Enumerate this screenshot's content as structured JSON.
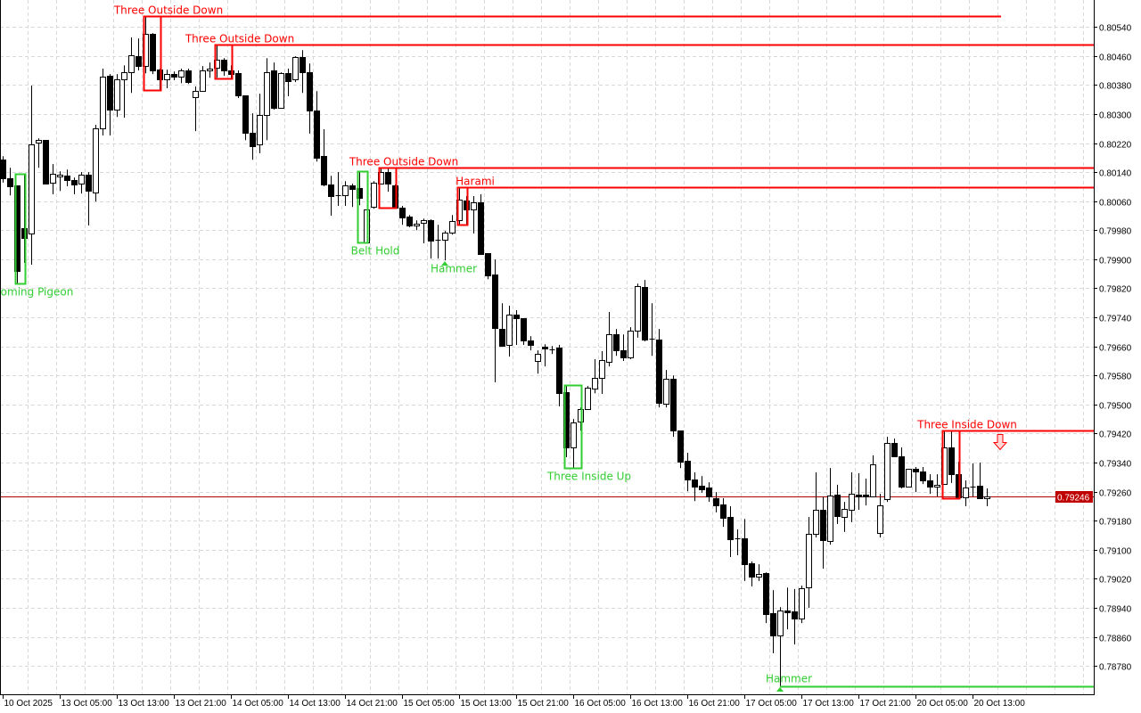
{
  "chart_data": {
    "type": "candlestick",
    "title": "",
    "ylim": [
      0.78702,
      0.80614
    ],
    "grid": true,
    "y_ticks": [
      "0.80540",
      "0.80460",
      "0.80380",
      "0.80300",
      "0.80220",
      "0.80140",
      "0.80060",
      "0.79980",
      "0.79900",
      "0.79820",
      "0.79740",
      "0.79660",
      "0.79580",
      "0.79500",
      "0.79420",
      "0.79340",
      "0.79260",
      "0.79180",
      "0.79100",
      "0.79020",
      "0.78940",
      "0.78860",
      "0.78780"
    ],
    "x_ticks": [
      {
        "bar": 0,
        "label": "10 Oct 2025"
      },
      {
        "bar": 8,
        "label": "13 Oct 05:00"
      },
      {
        "bar": 16,
        "label": "13 Oct 13:00"
      },
      {
        "bar": 24,
        "label": "13 Oct 21:00"
      },
      {
        "bar": 32,
        "label": "14 Oct 05:00"
      },
      {
        "bar": 40,
        "label": "14 Oct 13:00"
      },
      {
        "bar": 48,
        "label": "14 Oct 21:00"
      },
      {
        "bar": 56,
        "label": "15 Oct 05:00"
      },
      {
        "bar": 64,
        "label": "15 Oct 13:00"
      },
      {
        "bar": 72,
        "label": "15 Oct 21:00"
      },
      {
        "bar": 80,
        "label": "16 Oct 05:00"
      },
      {
        "bar": 88,
        "label": "16 Oct 13:00"
      },
      {
        "bar": 96,
        "label": "16 Oct 21:00"
      },
      {
        "bar": 104,
        "label": "17 Oct 05:00"
      },
      {
        "bar": 112,
        "label": "17 Oct 13:00"
      },
      {
        "bar": 120,
        "label": "17 Oct 21:00"
      },
      {
        "bar": 128,
        "label": "20 Oct 05:00"
      },
      {
        "bar": 136,
        "label": "20 Oct 13:00"
      }
    ],
    "current_price": "0.79246",
    "colors": {
      "bull_body": "#ffffff",
      "bear_body": "#000000",
      "outline": "#000000",
      "bearish_pattern": "#ff0000",
      "bullish_pattern": "#32cd32",
      "price_label": "#c00000",
      "price_line": "#b00000",
      "grid": "#d9d9d9"
    },
    "candles_ohlc": [
      [
        0.80174,
        0.80184,
        0.80111,
        0.80123
      ],
      [
        0.80123,
        0.80152,
        0.80076,
        0.80101
      ],
      [
        0.80103,
        0.80103,
        0.79833,
        0.79868
      ],
      [
        0.79985,
        0.80135,
        0.7989,
        0.79958
      ],
      [
        0.79971,
        0.80378,
        0.79885,
        0.80216
      ],
      [
        0.80221,
        0.80233,
        0.80152,
        0.80228
      ],
      [
        0.80228,
        0.80228,
        0.80108,
        0.80108
      ],
      [
        0.80111,
        0.80162,
        0.80079,
        0.80135
      ],
      [
        0.80128,
        0.80142,
        0.80088,
        0.80133
      ],
      [
        0.8013,
        0.80147,
        0.80101,
        0.80118
      ],
      [
        0.80118,
        0.80125,
        0.80079,
        0.80106
      ],
      [
        0.80108,
        0.8014,
        0.80081,
        0.80133
      ],
      [
        0.80133,
        0.8014,
        0.79993,
        0.80088
      ],
      [
        0.80084,
        0.8027,
        0.80059,
        0.8026
      ],
      [
        0.8026,
        0.80425,
        0.80241,
        0.80403
      ],
      [
        0.80405,
        0.8041,
        0.80241,
        0.80312
      ],
      [
        0.80312,
        0.8041,
        0.80292,
        0.80395
      ],
      [
        0.80395,
        0.80434,
        0.8029,
        0.80415
      ],
      [
        0.80415,
        0.80511,
        0.80358,
        0.80461
      ],
      [
        0.80459,
        0.80508,
        0.8042,
        0.80432
      ],
      [
        0.80432,
        0.80569,
        0.80412,
        0.8052
      ],
      [
        0.8052,
        0.80523,
        0.8041,
        0.8042
      ],
      [
        0.80422,
        0.80425,
        0.80366,
        0.80395
      ],
      [
        0.80395,
        0.80422,
        0.80371,
        0.8041
      ],
      [
        0.8041,
        0.80417,
        0.80393,
        0.80403
      ],
      [
        0.80403,
        0.80425,
        0.80385,
        0.8042
      ],
      [
        0.8042,
        0.80425,
        0.80383,
        0.80388
      ],
      [
        0.80346,
        0.80376,
        0.80253,
        0.80363
      ],
      [
        0.80363,
        0.80432,
        0.80363,
        0.8042
      ],
      [
        0.8042,
        0.80442,
        0.804,
        0.80425
      ],
      [
        0.80427,
        0.80491,
        0.804,
        0.80449
      ],
      [
        0.80449,
        0.80454,
        0.80405,
        0.8042
      ],
      [
        0.8042,
        0.80434,
        0.80398,
        0.8041
      ],
      [
        0.80412,
        0.8042,
        0.80344,
        0.80351
      ],
      [
        0.80351,
        0.80351,
        0.80228,
        0.80248
      ],
      [
        0.80248,
        0.80302,
        0.80174,
        0.80211
      ],
      [
        0.80216,
        0.80356,
        0.80192,
        0.80297
      ],
      [
        0.80297,
        0.80454,
        0.80228,
        0.80415
      ],
      [
        0.8042,
        0.80442,
        0.80312,
        0.80317
      ],
      [
        0.80317,
        0.80415,
        0.80317,
        0.80412
      ],
      [
        0.80412,
        0.80425,
        0.80349,
        0.8039
      ],
      [
        0.80395,
        0.80459,
        0.80388,
        0.80457
      ],
      [
        0.80457,
        0.80476,
        0.80358,
        0.80415
      ],
      [
        0.80415,
        0.80439,
        0.80246,
        0.80309
      ],
      [
        0.80309,
        0.80363,
        0.80169,
        0.80179
      ],
      [
        0.80184,
        0.80258,
        0.80101,
        0.80106
      ],
      [
        0.80106,
        0.8013,
        0.8002,
        0.80074
      ],
      [
        0.80076,
        0.8014,
        0.80047,
        0.80074
      ],
      [
        0.80076,
        0.80115,
        0.80047,
        0.80103
      ],
      [
        0.80103,
        0.80108,
        0.80044,
        0.80093
      ],
      [
        0.80096,
        0.80142,
        0.80049,
        0.80069
      ],
      [
        0.79946,
        0.80037,
        0.79946,
        0.80037
      ],
      [
        0.80044,
        0.80115,
        0.80039,
        0.80111
      ],
      [
        0.80108,
        0.80152,
        0.80108,
        0.8014
      ],
      [
        0.8014,
        0.80152,
        0.80086,
        0.80108
      ],
      [
        0.80103,
        0.80106,
        0.80042,
        0.80042
      ],
      [
        0.80042,
        0.80047,
        0.79995,
        0.80015
      ],
      [
        0.80017,
        0.80022,
        0.79988,
        0.79993
      ],
      [
        0.79993,
        0.80007,
        0.7998,
        0.79998
      ],
      [
        0.8,
        0.80012,
        0.79944,
        0.80007
      ],
      [
        0.80007,
        0.8001,
        0.79902,
        0.79951
      ],
      [
        0.79953,
        0.79995,
        0.79902,
        0.79951
      ],
      [
        0.79953,
        0.79978,
        0.79897,
        0.79973
      ],
      [
        0.79973,
        0.80022,
        0.79968,
        0.80005
      ],
      [
        0.80007,
        0.80098,
        0.79995,
        0.80064
      ],
      [
        0.80061,
        0.80074,
        0.79995,
        0.80037
      ],
      [
        0.80037,
        0.80074,
        0.79971,
        0.80057
      ],
      [
        0.80057,
        0.80079,
        0.79914,
        0.79914
      ],
      [
        0.79917,
        0.79917,
        0.79845,
        0.79855
      ],
      [
        0.79858,
        0.79899,
        0.79561,
        0.7971
      ],
      [
        0.79708,
        0.79779,
        0.79661,
        0.79661
      ],
      [
        0.79664,
        0.79772,
        0.79632,
        0.79747
      ],
      [
        0.79747,
        0.7976,
        0.79664,
        0.79737
      ],
      [
        0.79737,
        0.79737,
        0.79664,
        0.79676
      ],
      [
        0.79676,
        0.79688,
        0.79649,
        0.79664
      ],
      [
        0.7962,
        0.79649,
        0.79585,
        0.79639
      ],
      [
        0.79659,
        0.79666,
        0.79605,
        0.79654
      ],
      [
        0.79652,
        0.79661,
        0.79639,
        0.79652
      ],
      [
        0.79657,
        0.79664,
        0.79495,
        0.79531
      ],
      [
        0.79534,
        0.79553,
        0.79355,
        0.79382
      ],
      [
        0.79382,
        0.7946,
        0.79325,
        0.7945
      ],
      [
        0.79453,
        0.79492,
        0.79428,
        0.79487
      ],
      [
        0.79487,
        0.79551,
        0.79487,
        0.79546
      ],
      [
        0.79544,
        0.79625,
        0.79531,
        0.79573
      ],
      [
        0.79573,
        0.79647,
        0.79529,
        0.79622
      ],
      [
        0.79617,
        0.79755,
        0.79605,
        0.79693
      ],
      [
        0.79693,
        0.79708,
        0.79634,
        0.79649
      ],
      [
        0.79649,
        0.79693,
        0.7962,
        0.7963
      ],
      [
        0.7963,
        0.79713,
        0.79625,
        0.79703
      ],
      [
        0.79703,
        0.79833,
        0.79684,
        0.79826
      ],
      [
        0.79823,
        0.79843,
        0.79674,
        0.79679
      ],
      [
        0.79681,
        0.79779,
        0.79634,
        0.79679
      ],
      [
        0.79679,
        0.79708,
        0.79492,
        0.79504
      ],
      [
        0.79502,
        0.79595,
        0.79492,
        0.79571
      ],
      [
        0.79571,
        0.7958,
        0.79411,
        0.79428
      ],
      [
        0.79428,
        0.79428,
        0.79325,
        0.79342
      ],
      [
        0.79345,
        0.79367,
        0.79261,
        0.79293
      ],
      [
        0.79293,
        0.79313,
        0.79234,
        0.79274
      ],
      [
        0.79276,
        0.79303,
        0.79257,
        0.79266
      ],
      [
        0.79271,
        0.79286,
        0.79232,
        0.79247
      ],
      [
        0.79242,
        0.79259,
        0.79203,
        0.79222
      ],
      [
        0.79225,
        0.79242,
        0.79163,
        0.79188
      ],
      [
        0.7919,
        0.7922,
        0.7908,
        0.79129
      ],
      [
        0.79131,
        0.79156,
        0.79085,
        0.79131
      ],
      [
        0.79131,
        0.79185,
        0.79014,
        0.7906
      ],
      [
        0.79063,
        0.79068,
        0.78999,
        0.79026
      ],
      [
        0.79026,
        0.7906,
        0.79014,
        0.79033
      ],
      [
        0.79036,
        0.79038,
        0.78898,
        0.78923
      ],
      [
        0.78925,
        0.78989,
        0.78815,
        0.78864
      ],
      [
        0.78864,
        0.78942,
        0.78724,
        0.78933
      ],
      [
        0.78933,
        0.78996,
        0.78881,
        0.78928
      ],
      [
        0.7893,
        0.78992,
        0.78839,
        0.7891
      ],
      [
        0.7891,
        0.79001,
        0.78898,
        0.78994
      ],
      [
        0.78996,
        0.7919,
        0.7894,
        0.79144
      ],
      [
        0.79144,
        0.79313,
        0.79134,
        0.7921
      ],
      [
        0.7921,
        0.79247,
        0.79048,
        0.79126
      ],
      [
        0.79124,
        0.79325,
        0.79114,
        0.79249
      ],
      [
        0.79252,
        0.79279,
        0.79171,
        0.79193
      ],
      [
        0.7919,
        0.79232,
        0.79149,
        0.79212
      ],
      [
        0.7921,
        0.79313,
        0.79176,
        0.79254
      ],
      [
        0.79252,
        0.79311,
        0.7921,
        0.79247
      ],
      [
        0.79252,
        0.79296,
        0.79222,
        0.79247
      ],
      [
        0.79247,
        0.7936,
        0.79247,
        0.79335
      ],
      [
        0.79146,
        0.79254,
        0.79134,
        0.79222
      ],
      [
        0.79239,
        0.79411,
        0.79232,
        0.79394
      ],
      [
        0.79394,
        0.79406,
        0.79357,
        0.79357
      ],
      [
        0.79357,
        0.79382,
        0.79269,
        0.79274
      ],
      [
        0.79274,
        0.79323,
        0.79274,
        0.79323
      ],
      [
        0.79323,
        0.79328,
        0.79259,
        0.79315
      ],
      [
        0.79315,
        0.79328,
        0.79281,
        0.79291
      ],
      [
        0.79291,
        0.79308,
        0.79254,
        0.79274
      ],
      [
        0.79274,
        0.79308,
        0.79247,
        0.79279
      ],
      [
        0.79281,
        0.79428,
        0.79281,
        0.79382
      ],
      [
        0.79382,
        0.79428,
        0.79284,
        0.79308
      ],
      [
        0.79308,
        0.79342,
        0.79242,
        0.79244
      ],
      [
        0.79244,
        0.79291,
        0.7922,
        0.79271
      ],
      [
        0.79274,
        0.79338,
        0.79247,
        0.79271
      ],
      [
        0.79276,
        0.7934,
        0.79242,
        0.79242
      ],
      [
        0.79242,
        0.79269,
        0.7922,
        0.79246
      ]
    ],
    "patterns": [
      {
        "label": "Homing Pigeon",
        "bias": "bullish",
        "from": 2,
        "to": 3,
        "box": true
      },
      {
        "label": "Three Outside Down",
        "bias": "bearish",
        "from": 20,
        "to": 22,
        "box": true,
        "level_line": true,
        "line_to_bar": 140
      },
      {
        "label": "Three Outside Down",
        "bias": "bearish",
        "from": 30,
        "to": 32,
        "box": true,
        "level_line": true
      },
      {
        "label": "Belt Hold",
        "bias": "bullish",
        "from": 50,
        "to": 51,
        "box": true
      },
      {
        "label": "Three Outside Down",
        "bias": "bearish",
        "from": 53,
        "to": 55,
        "box": true,
        "level_line": true
      },
      {
        "label": "Hammer",
        "bias": "bullish",
        "from": 62,
        "to": 62,
        "arrow": true
      },
      {
        "label": "Harami",
        "bias": "bearish",
        "from": 64,
        "to": 65,
        "box": true,
        "level_line": true
      },
      {
        "label": "Three Inside Up",
        "bias": "bullish",
        "from": 79,
        "to": 81,
        "box": true
      },
      {
        "label": "Hammer",
        "bias": "bullish",
        "from": 109,
        "to": 109,
        "arrow": true,
        "level_line": true
      },
      {
        "label": "Three Inside Down",
        "bias": "bearish",
        "from": 132,
        "to": 134,
        "box": true,
        "level_line": true,
        "signal": "sell-arrow",
        "signal_bar": 140
      }
    ]
  }
}
